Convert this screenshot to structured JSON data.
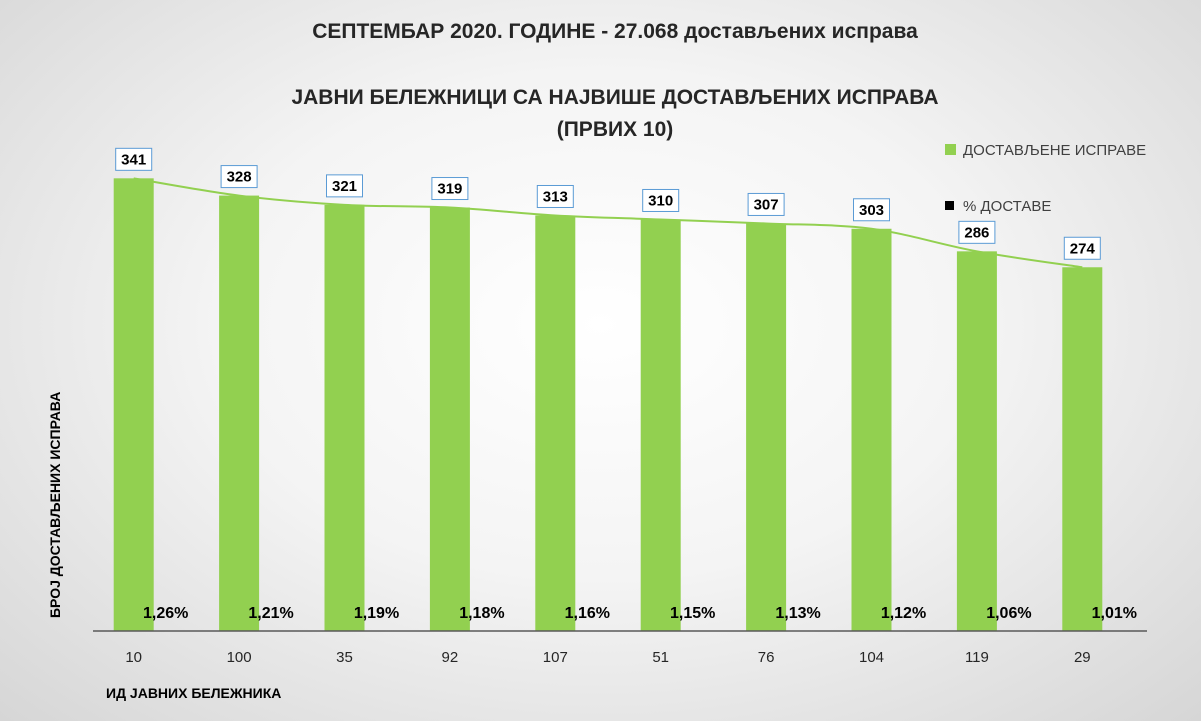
{
  "chart_data": {
    "type": "bar",
    "title": "СЕПТЕМБАР 2020. ГОДИНЕ - 27.068 достављених исправа",
    "subtitle_line1": "ЈАВНИ БЕЛЕЖНИЦИ СА НАЈВИШЕ ДОСТАВЉЕНИХ ИСПРАВА",
    "subtitle_line2": "(ПРВИХ 10)",
    "xlabel": "ИД ЈАВНИХ БЕЛЕЖНИКА",
    "ylabel": "БРОЈ ДОСТАВЉЕНИХ ИСПРАВА",
    "categories": [
      "10",
      "100",
      "35",
      "92",
      "107",
      "51",
      "76",
      "104",
      "119",
      "29"
    ],
    "series": [
      {
        "name": "ДОСТАВЉЕНЕ ИСПРАВЕ",
        "color": "#92d050",
        "values": [
          341,
          328,
          321,
          319,
          313,
          310,
          307,
          303,
          286,
          274
        ]
      },
      {
        "name": "% ДОСТАВЕ",
        "color": "#000000",
        "values": [
          "1,26%",
          "1,21%",
          "1,19%",
          "1,18%",
          "1,16%",
          "1,15%",
          "1,13%",
          "1,12%",
          "1,06%",
          "1,01%"
        ]
      }
    ],
    "ylim": [
      0,
      400
    ],
    "grid": false,
    "legend_position": "right"
  }
}
